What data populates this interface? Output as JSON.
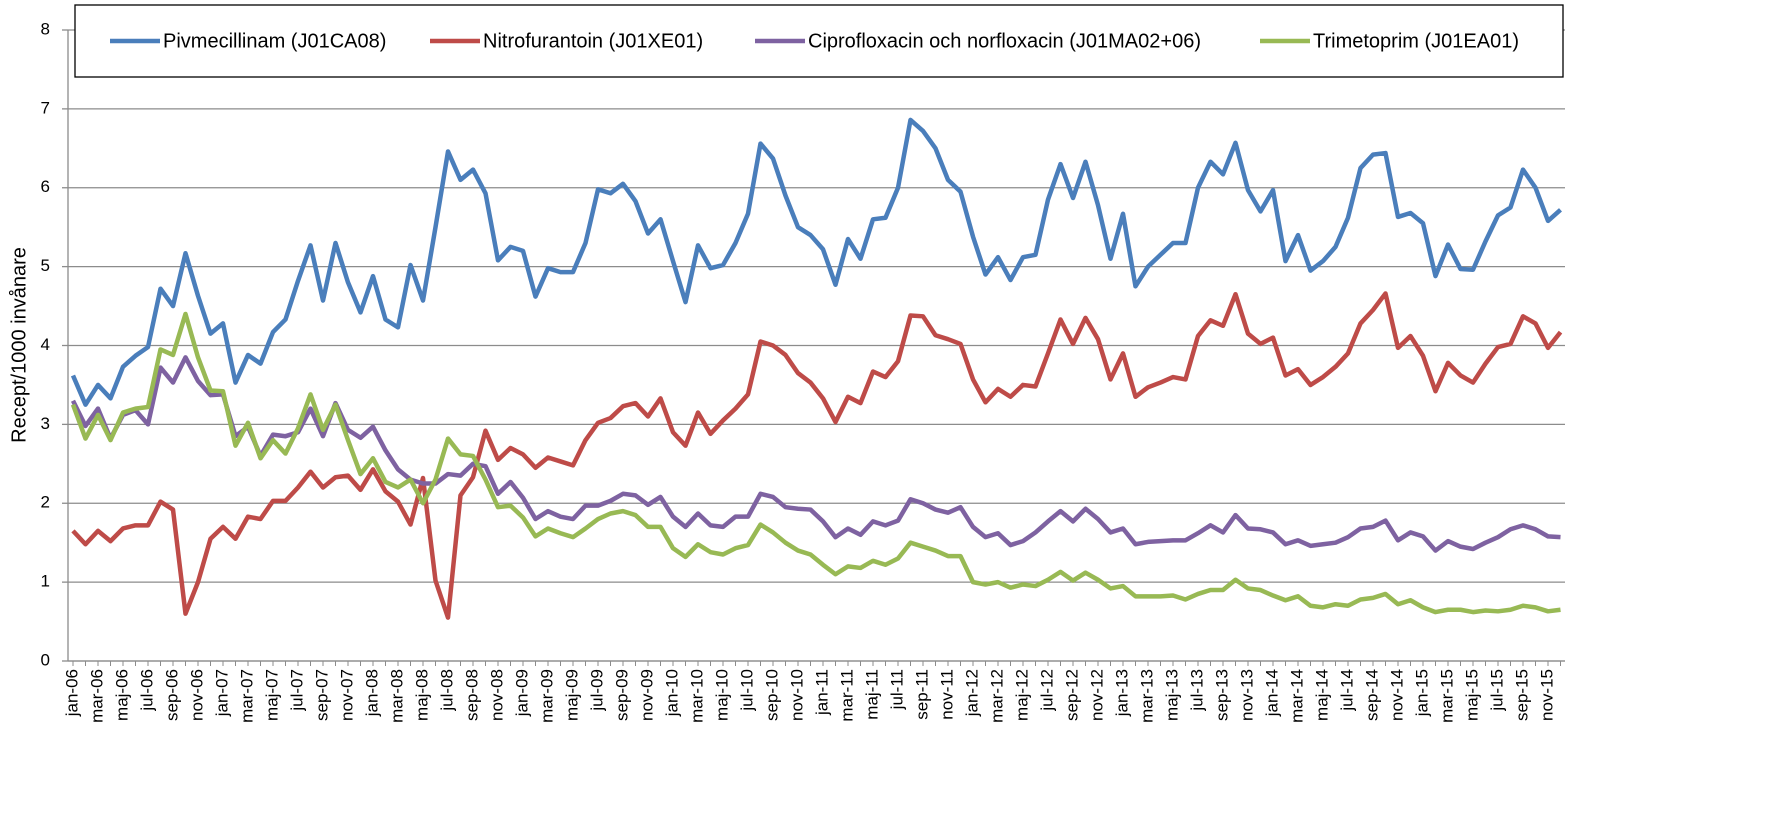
{
  "chart_data": {
    "type": "line",
    "ylabel": "Recept/1000 invånare",
    "categories": [
      "jan-06",
      null,
      "mar-06",
      null,
      "maj-06",
      null,
      "jul-06",
      null,
      "sep-06",
      null,
      "nov-06",
      null,
      "jan-07",
      null,
      "mar-07",
      null,
      "maj-07",
      null,
      "jul-07",
      null,
      "sep-07",
      null,
      "nov-07",
      null,
      "jan-08",
      null,
      "mar-08",
      null,
      "maj-08",
      null,
      "jul-08",
      null,
      "sep-08",
      null,
      "nov-08",
      null,
      "jan-09",
      null,
      "mar-09",
      null,
      "maj-09",
      null,
      "jul-09",
      null,
      "sep-09",
      null,
      "nov-09",
      null,
      "jan-10",
      null,
      "mar-10",
      null,
      "maj-10",
      null,
      "jul-10",
      null,
      "sep-10",
      null,
      "nov-10",
      null,
      "jan-11",
      null,
      "mar-11",
      null,
      "maj-11",
      null,
      "jul-11",
      null,
      "sep-11",
      null,
      "nov-11",
      null,
      "jan-12",
      null,
      "mar-12",
      null,
      "maj-12",
      null,
      "jul-12",
      null,
      "sep-12",
      null,
      "nov-12",
      null,
      "jan-13",
      null,
      "mar-13",
      null,
      "maj-13",
      null,
      "jul-13",
      null,
      "sep-13",
      null,
      "nov-13",
      null,
      "jan-14",
      null,
      "mar-14",
      null,
      "maj-14",
      null,
      "jul-14",
      null,
      "sep-14",
      null,
      "nov-14",
      null,
      "jan-15",
      null,
      "mar-15",
      null,
      "maj-15",
      null,
      "jul-15",
      null,
      "sep-15",
      null,
      "nov-15",
      null
    ],
    "series": [
      {
        "name": "Pivmecillinam (J01CA08)",
        "color": "#4a7ebb",
        "values": [
          3.62,
          3.25,
          3.5,
          3.33,
          3.73,
          3.87,
          3.98,
          4.72,
          4.5,
          5.17,
          4.63,
          4.15,
          4.28,
          3.53,
          3.88,
          3.77,
          4.17,
          4.33,
          4.82,
          5.27,
          4.57,
          5.3,
          4.8,
          4.42,
          4.88,
          4.33,
          4.23,
          5.02,
          4.57,
          5.5,
          6.46,
          6.1,
          6.23,
          5.93,
          5.08,
          5.25,
          5.2,
          4.62,
          4.98,
          4.93,
          4.93,
          5.3,
          5.98,
          5.93,
          6.05,
          5.83,
          5.42,
          5.6,
          5.07,
          4.55,
          5.27,
          4.98,
          5.02,
          5.3,
          5.67,
          6.56,
          6.37,
          5.9,
          5.5,
          5.4,
          5.22,
          4.77,
          5.35,
          5.1,
          5.6,
          5.62,
          6.0,
          6.86,
          6.72,
          6.5,
          6.1,
          5.95,
          5.38,
          4.9,
          5.12,
          4.83,
          5.12,
          5.15,
          5.85,
          6.3,
          5.87,
          6.33,
          5.78,
          5.1,
          5.67,
          4.75,
          5.0,
          5.15,
          5.3,
          5.3,
          6.0,
          6.33,
          6.17,
          6.57,
          5.97,
          5.7,
          5.97,
          5.07,
          5.4,
          4.95,
          5.07,
          5.25,
          5.62,
          6.25,
          6.42,
          6.44,
          5.63,
          5.68,
          5.55,
          4.88,
          5.28,
          4.97,
          4.96,
          5.32,
          5.65,
          5.75,
          6.23,
          6.0,
          5.58,
          5.72
        ]
      },
      {
        "name": "Nitrofurantoin (J01XE01)",
        "color": "#be4b48",
        "values": [
          1.65,
          1.48,
          1.65,
          1.52,
          1.68,
          1.72,
          1.72,
          2.02,
          1.92,
          0.6,
          1.0,
          1.55,
          1.7,
          1.55,
          1.83,
          1.8,
          2.03,
          2.03,
          2.2,
          2.4,
          2.2,
          2.33,
          2.35,
          2.17,
          2.43,
          2.15,
          2.02,
          1.73,
          2.32,
          1.02,
          0.55,
          2.1,
          2.33,
          2.92,
          2.55,
          2.7,
          2.62,
          2.45,
          2.58,
          2.53,
          2.48,
          2.8,
          3.02,
          3.08,
          3.23,
          3.27,
          3.1,
          3.33,
          2.9,
          2.73,
          3.15,
          2.88,
          3.05,
          3.2,
          3.38,
          4.05,
          4.0,
          3.88,
          3.65,
          3.53,
          3.33,
          3.03,
          3.35,
          3.27,
          3.67,
          3.6,
          3.8,
          4.38,
          4.37,
          4.13,
          4.08,
          4.02,
          3.57,
          3.28,
          3.45,
          3.35,
          3.5,
          3.48,
          3.9,
          4.33,
          4.02,
          4.35,
          4.08,
          3.57,
          3.9,
          3.35,
          3.47,
          3.53,
          3.6,
          3.57,
          4.12,
          4.32,
          4.25,
          4.65,
          4.15,
          4.02,
          4.1,
          3.62,
          3.7,
          3.5,
          3.6,
          3.73,
          3.9,
          4.28,
          4.45,
          4.66,
          3.97,
          4.12,
          3.87,
          3.42,
          3.78,
          3.62,
          3.53,
          3.77,
          3.98,
          4.02,
          4.37,
          4.28,
          3.97,
          4.17
        ]
      },
      {
        "name": "Ciprofloxacin och norfloxacin (J01MA02+06)",
        "color": "#7e62a1",
        "values": [
          3.3,
          2.98,
          3.2,
          2.82,
          3.12,
          3.18,
          3.0,
          3.72,
          3.53,
          3.85,
          3.55,
          3.37,
          3.38,
          2.85,
          2.97,
          2.6,
          2.87,
          2.85,
          2.9,
          3.2,
          2.85,
          3.27,
          2.93,
          2.83,
          2.97,
          2.67,
          2.43,
          2.3,
          2.25,
          2.25,
          2.37,
          2.35,
          2.5,
          2.47,
          2.12,
          2.27,
          2.07,
          1.8,
          1.9,
          1.83,
          1.8,
          1.97,
          1.97,
          2.03,
          2.12,
          2.1,
          1.98,
          2.08,
          1.83,
          1.7,
          1.87,
          1.72,
          1.7,
          1.83,
          1.83,
          2.12,
          2.08,
          1.95,
          1.93,
          1.92,
          1.77,
          1.57,
          1.68,
          1.6,
          1.77,
          1.72,
          1.78,
          2.05,
          2.0,
          1.92,
          1.88,
          1.95,
          1.7,
          1.57,
          1.62,
          1.47,
          1.52,
          1.63,
          1.77,
          1.9,
          1.77,
          1.93,
          1.8,
          1.63,
          1.68,
          1.48,
          1.51,
          1.52,
          1.53,
          1.53,
          1.62,
          1.72,
          1.63,
          1.85,
          1.68,
          1.67,
          1.63,
          1.48,
          1.53,
          1.46,
          1.48,
          1.5,
          1.57,
          1.68,
          1.7,
          1.78,
          1.53,
          1.63,
          1.58,
          1.4,
          1.52,
          1.45,
          1.42,
          1.5,
          1.57,
          1.67,
          1.72,
          1.67,
          1.58,
          1.57
        ]
      },
      {
        "name": "Trimetoprim (J01EA01)",
        "color": "#98b954",
        "values": [
          3.25,
          2.82,
          3.12,
          2.8,
          3.15,
          3.2,
          3.22,
          3.95,
          3.88,
          4.4,
          3.85,
          3.43,
          3.42,
          2.73,
          3.02,
          2.57,
          2.8,
          2.63,
          2.95,
          3.38,
          2.93,
          3.25,
          2.8,
          2.37,
          2.57,
          2.27,
          2.2,
          2.3,
          2.0,
          2.3,
          2.82,
          2.62,
          2.6,
          2.3,
          1.95,
          1.97,
          1.82,
          1.58,
          1.68,
          1.62,
          1.57,
          1.68,
          1.8,
          1.87,
          1.9,
          1.85,
          1.7,
          1.7,
          1.43,
          1.32,
          1.48,
          1.38,
          1.35,
          1.43,
          1.47,
          1.73,
          1.63,
          1.5,
          1.4,
          1.35,
          1.22,
          1.1,
          1.2,
          1.18,
          1.27,
          1.22,
          1.3,
          1.5,
          1.45,
          1.4,
          1.33,
          1.33,
          1.0,
          0.97,
          1.0,
          0.93,
          0.97,
          0.95,
          1.03,
          1.13,
          1.02,
          1.12,
          1.03,
          0.92,
          0.95,
          0.82,
          0.82,
          0.82,
          0.83,
          0.78,
          0.85,
          0.9,
          0.9,
          1.03,
          0.92,
          0.9,
          0.83,
          0.77,
          0.82,
          0.7,
          0.68,
          0.72,
          0.7,
          0.78,
          0.8,
          0.85,
          0.72,
          0.77,
          0.68,
          0.62,
          0.65,
          0.65,
          0.62,
          0.64,
          0.63,
          0.65,
          0.7,
          0.68,
          0.63,
          0.65
        ]
      }
    ],
    "ylim": [
      0,
      8
    ],
    "yticks": [
      0,
      1,
      2,
      3,
      4,
      5,
      6,
      7,
      8
    ],
    "grid": true
  }
}
